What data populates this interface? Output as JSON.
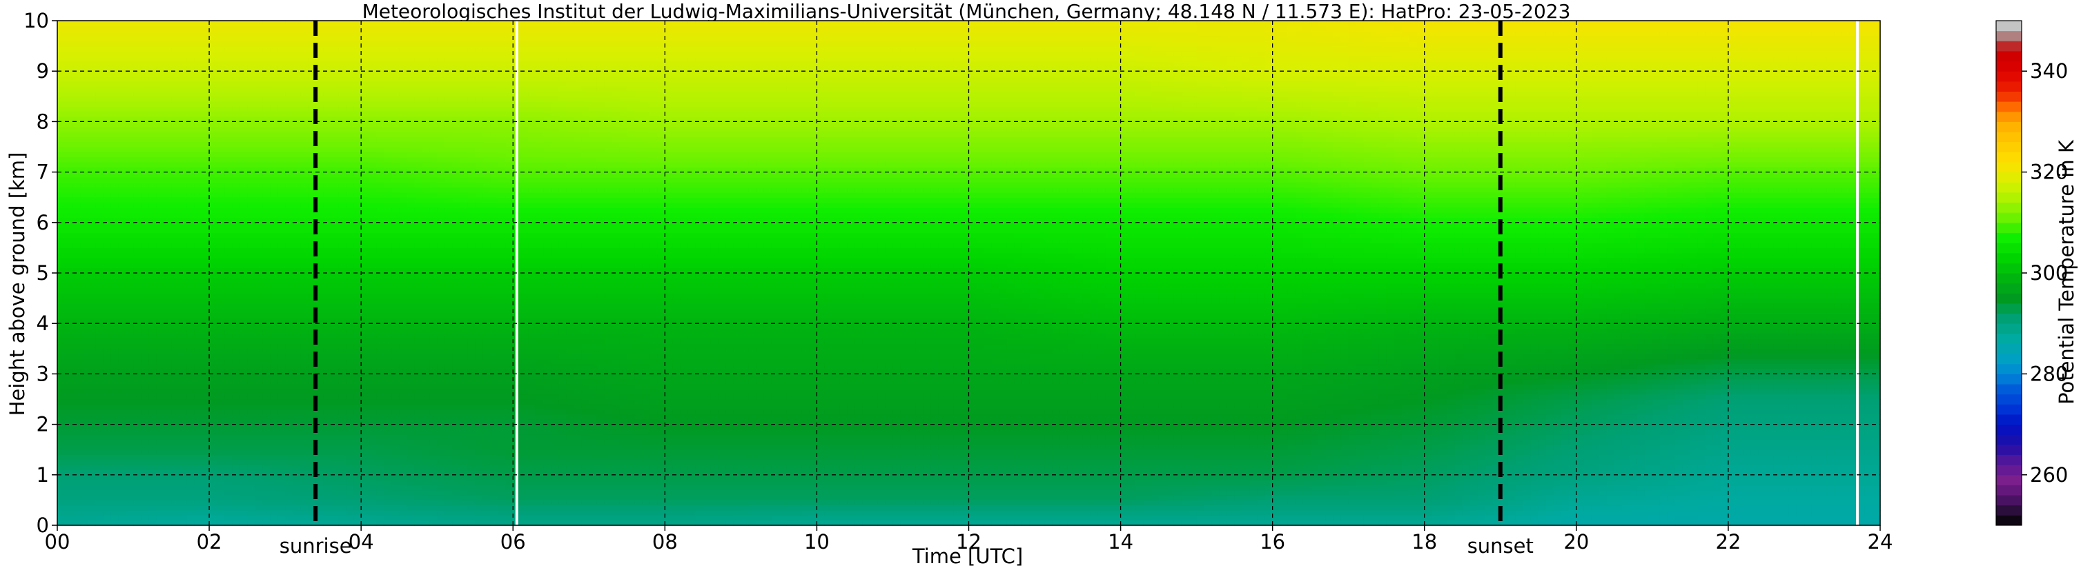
{
  "chart_data": {
    "type": "heatmap",
    "title": "Meteorologisches Institut der Ludwig-Maximilians-Universität (München, Germany; 48.148 N / 11.573 E):    HatPro: 23-05-2023",
    "xlabel": "Time [UTC]",
    "ylabel": "Height above ground [km]",
    "colorbar_label": "Potential Temperature in K",
    "x_ticks": [
      "00",
      "02",
      "04",
      "06",
      "08",
      "10",
      "12",
      "14",
      "16",
      "18",
      "20",
      "22",
      "24"
    ],
    "y_ticks": [
      "0",
      "1",
      "2",
      "3",
      "4",
      "5",
      "6",
      "7",
      "8",
      "9",
      "10"
    ],
    "colorbar_ticks": [
      "260",
      "280",
      "300",
      "320",
      "340"
    ],
    "xlim": [
      0,
      24
    ],
    "ylim": [
      0,
      10
    ],
    "clim": [
      250,
      350
    ],
    "grid": true,
    "sunrise_time_utc": 3.4,
    "sunrise_label": "sunrise",
    "sunset_time_utc": 19.0,
    "sunset_label": "sunset",
    "data_gaps_utc": [
      6.05,
      23.7
    ],
    "profile_times_utc": [
      0,
      2,
      4,
      6,
      8,
      10,
      12,
      14,
      16,
      18,
      20,
      22,
      24
    ],
    "heights_km": [
      0,
      0.5,
      1,
      1.5,
      2,
      2.5,
      3,
      4,
      5,
      6,
      7,
      8,
      9,
      10
    ],
    "theta_K": [
      [
        288,
        290,
        291,
        293,
        294,
        295,
        296,
        299,
        302,
        306,
        309,
        313,
        317,
        320
      ],
      [
        287,
        290,
        291,
        293,
        294,
        295,
        296,
        299,
        302,
        306,
        309,
        313,
        317,
        320
      ],
      [
        288,
        291,
        292,
        293,
        294,
        295,
        296,
        299,
        302,
        306,
        309,
        313,
        317,
        320
      ],
      [
        289,
        292,
        293,
        294,
        294,
        295,
        296,
        299,
        302,
        306,
        310,
        313,
        317,
        320
      ],
      [
        289,
        292,
        293,
        294,
        295,
        296,
        297,
        299,
        302,
        306,
        310,
        314,
        317,
        320
      ],
      [
        288,
        292,
        293,
        294,
        295,
        296,
        297,
        299,
        302,
        306,
        310,
        314,
        317,
        320
      ],
      [
        288,
        292,
        293,
        294,
        295,
        296,
        297,
        299,
        302,
        306,
        310,
        314,
        317,
        320
      ],
      [
        288,
        292,
        293,
        294,
        295,
        296,
        297,
        300,
        303,
        306,
        310,
        314,
        317,
        320
      ],
      [
        288,
        291,
        293,
        294,
        295,
        296,
        297,
        300,
        303,
        306,
        310,
        314,
        318,
        320
      ],
      [
        288,
        291,
        292,
        293,
        294,
        295,
        296,
        299,
        303,
        307,
        311,
        315,
        318,
        321
      ],
      [
        286,
        288,
        290,
        291,
        292,
        293,
        295,
        299,
        303,
        307,
        311,
        315,
        318,
        321
      ],
      [
        286,
        287,
        288,
        289,
        290,
        291,
        293,
        298,
        302,
        306,
        310,
        315,
        318,
        321
      ],
      [
        286,
        287,
        288,
        289,
        290,
        291,
        293,
        298,
        302,
        306,
        310,
        315,
        318,
        321
      ]
    ],
    "colormap": [
      [
        250,
        "#000000"
      ],
      [
        252,
        "#1c0c24"
      ],
      [
        254,
        "#3a0f52"
      ],
      [
        256,
        "#5a1572"
      ],
      [
        259,
        "#7a1f8c"
      ],
      [
        262,
        "#5c1896"
      ],
      [
        266,
        "#1e0fa8"
      ],
      [
        270,
        "#0012c4"
      ],
      [
        273,
        "#0033d6"
      ],
      [
        277,
        "#005cd9"
      ],
      [
        280,
        "#0088d6"
      ],
      [
        283,
        "#00a0c2"
      ],
      [
        287,
        "#00aaa0"
      ],
      [
        291,
        "#00a074"
      ],
      [
        295,
        "#009a20"
      ],
      [
        299,
        "#00b410"
      ],
      [
        303,
        "#00d400"
      ],
      [
        307,
        "#10ee00"
      ],
      [
        311,
        "#6cf200"
      ],
      [
        315,
        "#b0f200"
      ],
      [
        318,
        "#d8f000"
      ],
      [
        322,
        "#ffe000"
      ],
      [
        326,
        "#ffc800"
      ],
      [
        330,
        "#ffaa00"
      ],
      [
        333,
        "#ff6a00"
      ],
      [
        336,
        "#ee2200"
      ],
      [
        340,
        "#dd0000"
      ],
      [
        344,
        "#cc0000"
      ],
      [
        346,
        "#b05050"
      ],
      [
        348,
        "#b0b0b0"
      ],
      [
        350,
        "#d8d8d8"
      ]
    ]
  }
}
